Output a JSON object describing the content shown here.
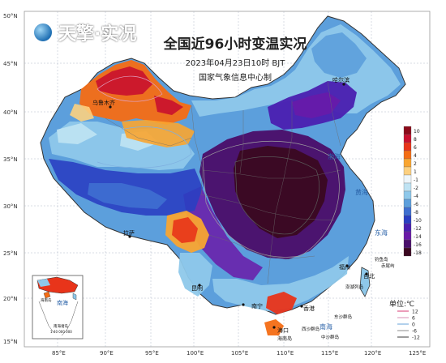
{
  "logo": {
    "name": "天擎·实况"
  },
  "header": {
    "title": "全国近96小时变温实况",
    "datetime": "2023年04月23日10时 BJT",
    "agency": "国家气象信息中心制"
  },
  "axes": {
    "lon_labels": [
      "85°E",
      "90°E",
      "95°E",
      "100°E",
      "105°E",
      "110°E",
      "115°E",
      "120°E",
      "125°E"
    ],
    "lat_labels": [
      "50°N",
      "45°N",
      "40°N",
      "35°N",
      "30°N",
      "25°N",
      "20°N",
      "15°N"
    ]
  },
  "legend": {
    "unit": "单位:℃",
    "values": [
      "10",
      "8",
      "6",
      "4",
      "2",
      "1",
      "-1",
      "-2",
      "-4",
      "-6",
      "-8",
      "-10",
      "-12",
      "-14",
      "-16",
      "-18"
    ],
    "colors": [
      "#8b0a1a",
      "#c8102e",
      "#e8341a",
      "#f46d14",
      "#f9a530",
      "#fcd080",
      "#eef6fb",
      "#bfe3f3",
      "#8ec8ea",
      "#5c9fdc",
      "#3f6fd0",
      "#2a3fc2",
      "#4a1fb0",
      "#6a1aa8",
      "#4a0f6b",
      "#3a0820"
    ]
  },
  "contour_legend": {
    "entries": [
      {
        "value": "12",
        "color": "#e05a8a"
      },
      {
        "value": "6",
        "color": "#e0a0c0"
      },
      {
        "value": "0",
        "color": "#7fb0e0"
      },
      {
        "value": "-6",
        "color": "#a0a0a0"
      },
      {
        "value": "-12",
        "color": "#5a5a5a"
      }
    ]
  },
  "places": [
    {
      "name": "乌鲁木齐"
    },
    {
      "name": "哈尔滨"
    },
    {
      "name": "拉萨"
    },
    {
      "name": "昆明"
    },
    {
      "name": "南宁"
    },
    {
      "name": "香港"
    },
    {
      "name": "台北"
    },
    {
      "name": "福州"
    },
    {
      "name": "海口"
    },
    {
      "name": "海南岛"
    },
    {
      "name": "钓鱼岛"
    },
    {
      "name": "赤尾屿"
    },
    {
      "name": "澎湖列岛"
    },
    {
      "name": "东沙群岛"
    },
    {
      "name": "西沙群岛"
    },
    {
      "name": "中沙群岛"
    }
  ],
  "seas": [
    {
      "name": "渤海"
    },
    {
      "name": "黄海"
    },
    {
      "name": "东海"
    },
    {
      "name": "南海"
    }
  ],
  "inset": {
    "sea": "南海",
    "label_island": "海南岛",
    "label_zhu": "南海诸岛",
    "scale": "1:40 000 000"
  }
}
